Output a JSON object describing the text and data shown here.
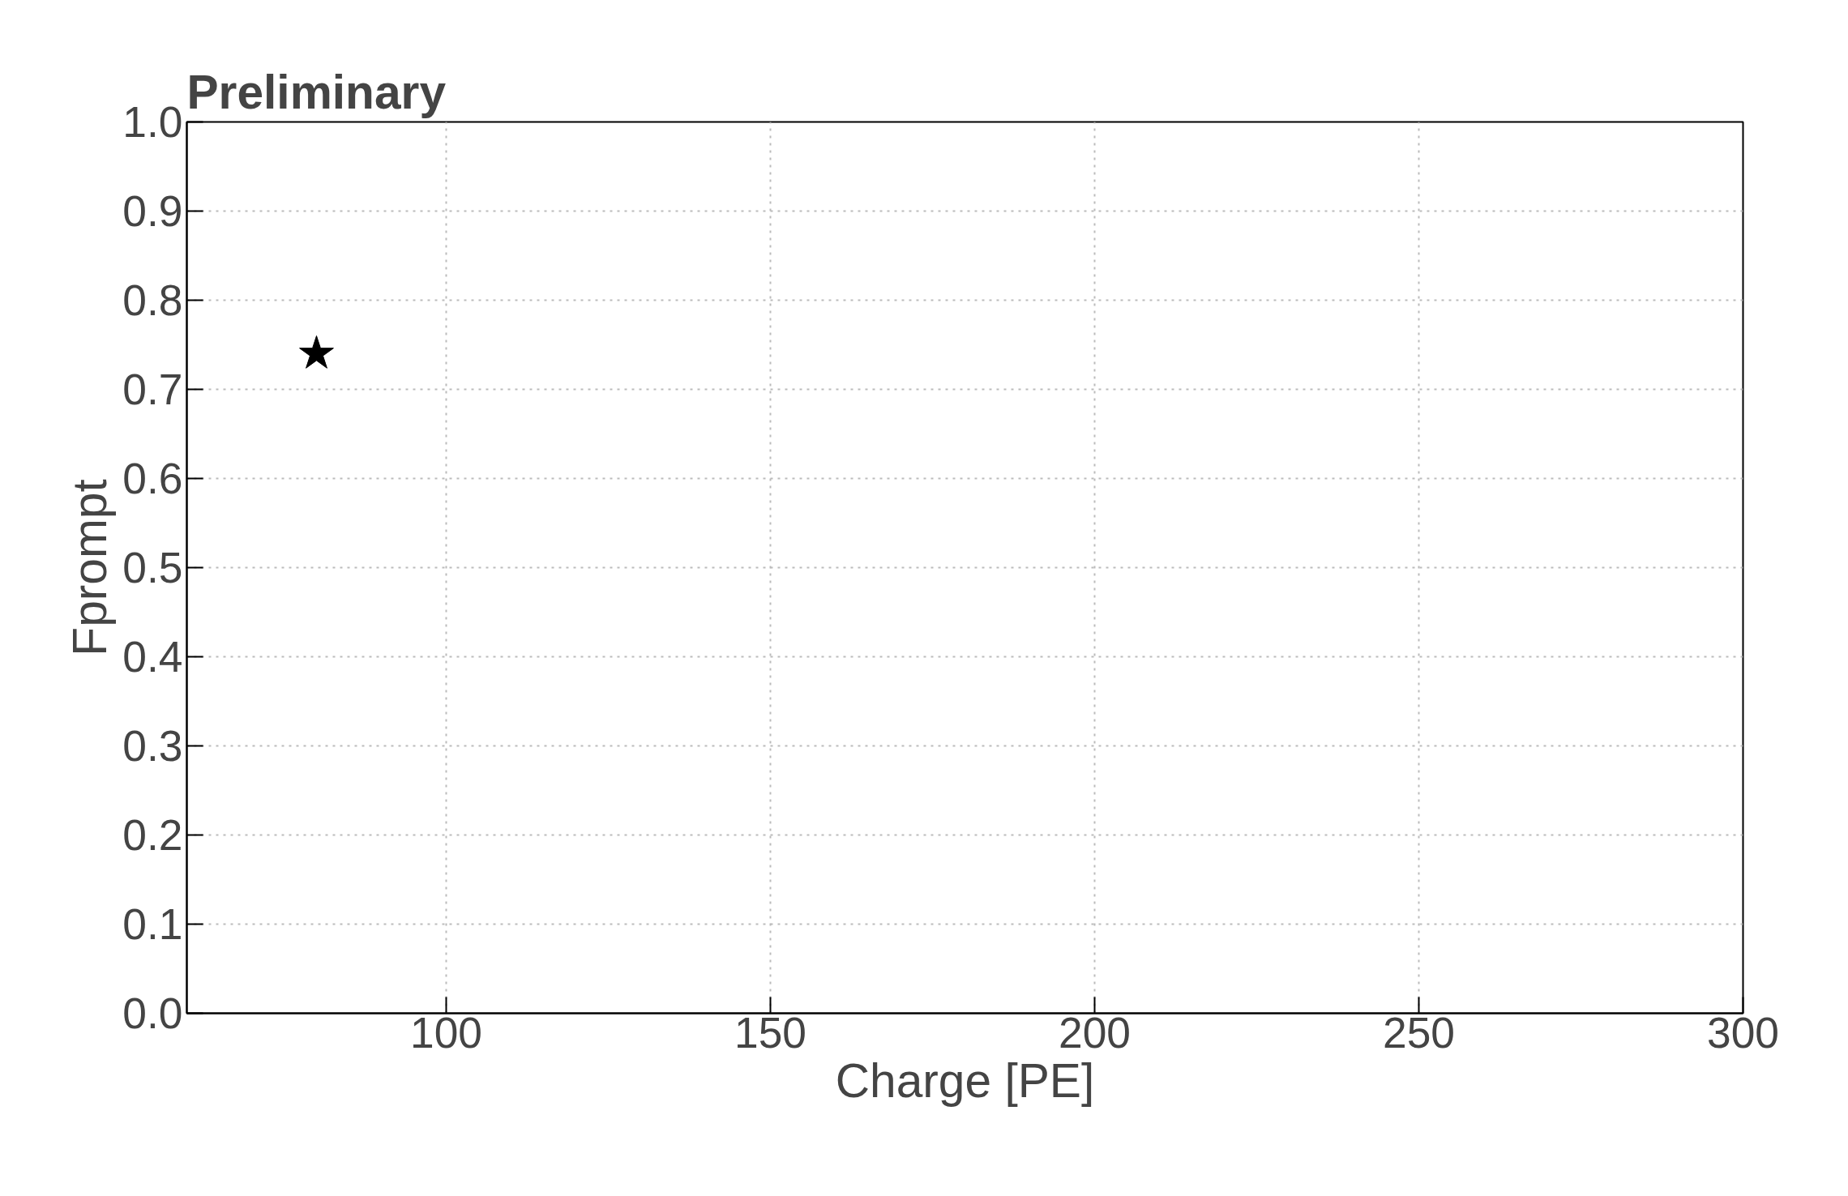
{
  "chart_data": {
    "type": "scatter",
    "title": "Preliminary",
    "xlabel": "Charge [PE]",
    "ylabel": "Fprompt",
    "x": [
      80
    ],
    "values": [
      0.74
    ],
    "color": "#000000",
    "marker": "star",
    "xlim": [
      60,
      300
    ],
    "xticks": [
      100,
      150,
      200,
      250,
      300
    ],
    "ylim": [
      0,
      1
    ],
    "yticks": [
      {
        "value": 0,
        "label": "0.0"
      },
      0.1,
      0.2,
      0.3,
      0.4,
      0.5,
      0.6,
      0.7,
      0.8,
      0.9,
      {
        "value": 1,
        "label": "1.0"
      }
    ],
    "grid": true
  }
}
